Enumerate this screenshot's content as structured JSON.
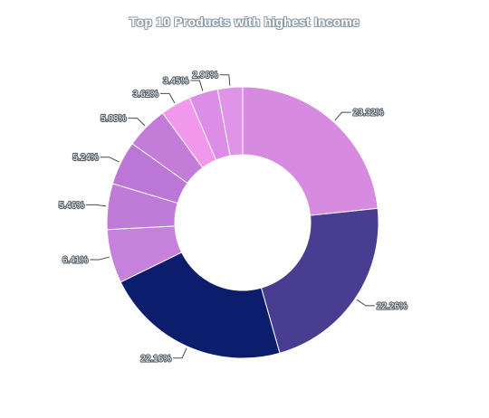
{
  "chart_data": {
    "type": "pie",
    "variant": "donut",
    "title": "Top 10 Products with highest Income",
    "slices": [
      {
        "value": 23.32,
        "label": "23.32%",
        "color": "#d68ae0"
      },
      {
        "value": 22.26,
        "label": "22.26%",
        "color": "#483d91"
      },
      {
        "value": 22.16,
        "label": "22.16%",
        "color": "#0c1d6e"
      },
      {
        "value": 6.41,
        "label": "6.41%",
        "color": "#c681dc"
      },
      {
        "value": 5.46,
        "label": "5.46%",
        "color": "#bf7bd8"
      },
      {
        "value": 5.24,
        "label": "5.24%",
        "color": "#bb76d6"
      },
      {
        "value": 5.08,
        "label": "5.08%",
        "color": "#c47cd9"
      },
      {
        "value": 3.62,
        "label": "3.62%",
        "color": "#f298ec"
      },
      {
        "value": 3.45,
        "label": "3.45%",
        "color": "#dc8de6"
      },
      {
        "value": 2.96,
        "label": "2.96%",
        "color": "#e094e8"
      }
    ],
    "start_angle_deg": 0,
    "direction": "clockwise",
    "legend": "none"
  }
}
